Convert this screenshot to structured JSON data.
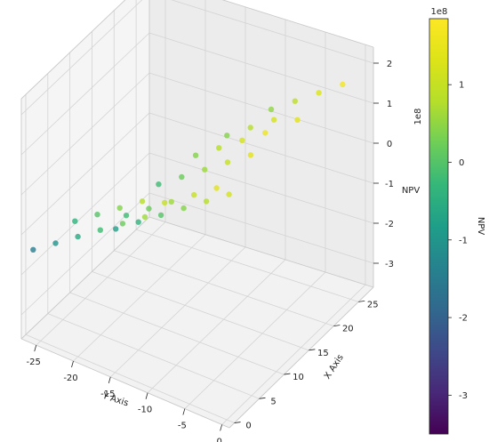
{
  "chart_data": {
    "type": "scatter",
    "projection": "3d",
    "xlabel": "X Axis",
    "ylabel": "Y Axis",
    "zlabel": "NPV",
    "z_offset_label": "1e8",
    "x_ticks": [
      "0",
      "5",
      "10",
      "15",
      "20",
      "25"
    ],
    "y_ticks": [
      "-25",
      "-20",
      "-15",
      "-10",
      "-5",
      "0"
    ],
    "z_ticks": [
      "-3",
      "-2",
      "-1",
      "0",
      "1",
      "2"
    ],
    "xlim": [
      -1,
      28
    ],
    "ylim": [
      -27,
      1
    ],
    "zlim": [
      -3.6,
      2.4
    ],
    "grid": true,
    "colormap": "viridis",
    "colorbar": {
      "label": "NPV",
      "offset_label": "1e8",
      "range": [
        -3.5,
        1.85
      ],
      "ticks": [
        "1",
        "0",
        "-1",
        "-2",
        "-3"
      ]
    },
    "points": [
      {
        "x": 0,
        "y": -26,
        "z": -1.4
      },
      {
        "x": 0,
        "y": -23,
        "z": -1.0
      },
      {
        "x": 0,
        "y": -20,
        "z": -0.6
      },
      {
        "x": 0,
        "y": -17,
        "z": -0.2
      },
      {
        "x": 0,
        "y": -14,
        "z": 0.2
      },
      {
        "x": 0,
        "y": -11,
        "z": 0.6
      },
      {
        "x": 1,
        "y": -21,
        "z": -0.4
      },
      {
        "x": 1,
        "y": -18,
        "z": 0.0
      },
      {
        "x": 1,
        "y": -15,
        "z": 0.4
      },
      {
        "x": 1,
        "y": -12,
        "z": 0.8
      },
      {
        "x": 1,
        "y": -9,
        "z": 1.0
      },
      {
        "x": 4,
        "y": -16,
        "z": -0.2
      },
      {
        "x": 4,
        "y": -13,
        "z": 0.2
      },
      {
        "x": 4,
        "y": -10,
        "z": 0.6
      },
      {
        "x": 4,
        "y": -7,
        "z": 1.0
      },
      {
        "x": 4,
        "y": -4,
        "z": 1.4
      },
      {
        "x": 5,
        "y": -18,
        "z": -0.8
      },
      {
        "x": 5,
        "y": -15,
        "z": -0.4
      },
      {
        "x": 5,
        "y": -12,
        "z": 0.0
      },
      {
        "x": 5,
        "y": -9,
        "z": 0.4
      },
      {
        "x": 5,
        "y": -6,
        "z": 0.8
      },
      {
        "x": 5,
        "y": -3,
        "z": 1.2
      },
      {
        "x": 11,
        "y": -16,
        "z": -0.2
      },
      {
        "x": 11,
        "y": -13,
        "z": 0.2
      },
      {
        "x": 11,
        "y": -10,
        "z": 0.6
      },
      {
        "x": 11,
        "y": -7,
        "z": 1.0
      },
      {
        "x": 11,
        "y": -4,
        "z": 1.4
      },
      {
        "x": 14,
        "y": -13,
        "z": 0.4
      },
      {
        "x": 14,
        "y": -10,
        "z": 0.8
      },
      {
        "x": 14,
        "y": -7,
        "z": 1.2
      },
      {
        "x": 14,
        "y": -4,
        "z": 1.6
      },
      {
        "x": 19,
        "y": -12,
        "z": 0.4
      },
      {
        "x": 19,
        "y": -9,
        "z": 0.8
      },
      {
        "x": 19,
        "y": -6,
        "z": 1.2
      },
      {
        "x": 19,
        "y": -3,
        "z": 1.4
      },
      {
        "x": 25,
        "y": -10,
        "z": 0.5
      },
      {
        "x": 25,
        "y": -7,
        "z": 0.9
      },
      {
        "x": 25,
        "y": -4,
        "z": 1.3
      },
      {
        "x": 25,
        "y": -1,
        "z": 1.7
      }
    ]
  }
}
